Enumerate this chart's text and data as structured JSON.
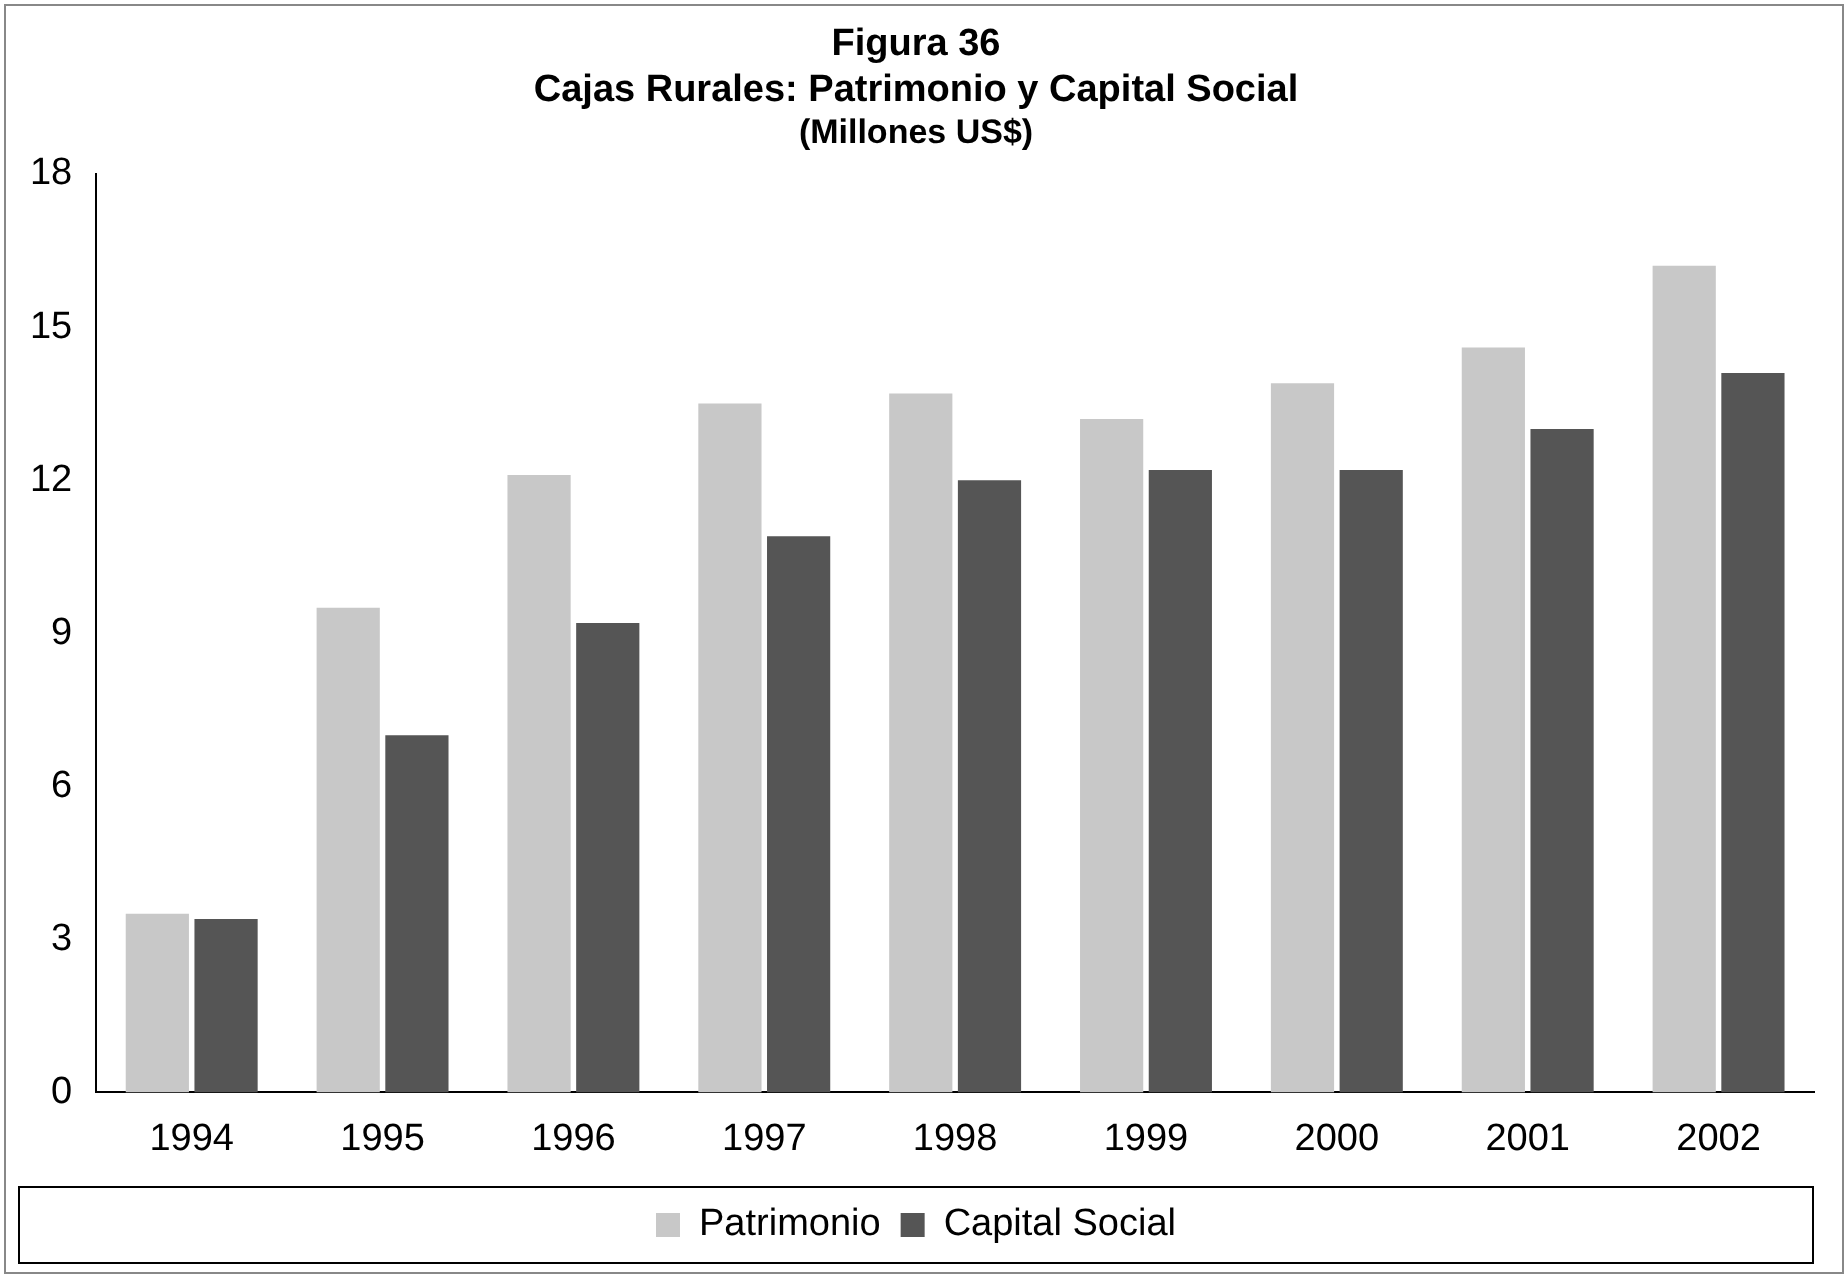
{
  "chart_data": {
    "type": "bar",
    "title": "Figura 36\nCajas Rurales: Patrimonio y Capital Social",
    "subtitle": "(Millones US$)",
    "categories": [
      "1994",
      "1995",
      "1996",
      "1997",
      "1998",
      "1999",
      "2000",
      "2001",
      "2002"
    ],
    "series": [
      {
        "name": "Patrimonio",
        "color": "#c8c8c8",
        "values": [
          3.5,
          9.5,
          12.1,
          13.5,
          13.7,
          13.2,
          13.9,
          14.6,
          16.2
        ]
      },
      {
        "name": "Capital Social",
        "color": "#555555",
        "values": [
          3.4,
          7.0,
          9.2,
          10.9,
          12.0,
          12.2,
          12.2,
          13.0,
          14.1
        ]
      }
    ],
    "ylim": [
      0,
      18
    ],
    "yticks": [
      0,
      3,
      6,
      9,
      12,
      15,
      18
    ],
    "grid": false,
    "legend": "bottom"
  }
}
